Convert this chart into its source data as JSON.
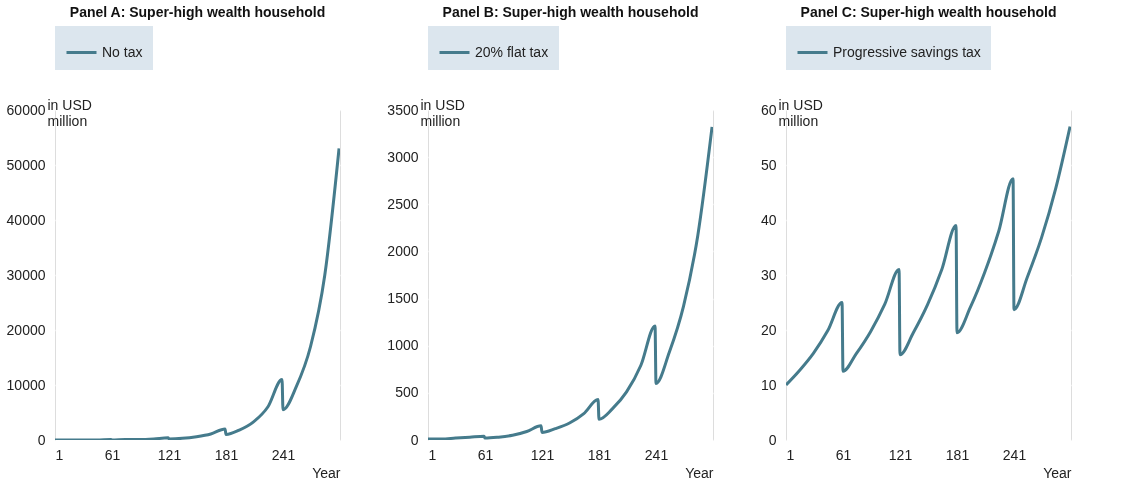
{
  "chart_data": [
    {
      "type": "line",
      "title": "Panel A: Super-high wealth household",
      "xlabel": "Year",
      "ylabel": "in USD million",
      "legend": "top",
      "grid": "y",
      "xlim": [
        1,
        301
      ],
      "xticks": [
        1,
        61,
        121,
        181,
        241
      ],
      "ylim": [
        0,
        60000
      ],
      "yticks": [
        0,
        10000,
        20000,
        30000,
        40000,
        50000,
        60000
      ],
      "series": [
        {
          "name": "No tax",
          "color": "#457b8c",
          "x": [
            1,
            15,
            30,
            45,
            60,
            61,
            75,
            90,
            105,
            120,
            121,
            135,
            150,
            165,
            180,
            181,
            195,
            210,
            225,
            240,
            241,
            255,
            270,
            285,
            300
          ],
          "values": [
            0,
            0,
            0,
            0,
            100,
            0,
            100,
            100,
            200,
            400,
            200,
            300,
            600,
            1100,
            2000,
            1000,
            1800,
            3300,
            6000,
            11000,
            5500,
            9700,
            17000,
            30000,
            53000
          ]
        }
      ]
    },
    {
      "type": "line",
      "title": "Panel B: Super-high wealth household",
      "xlabel": "Year",
      "ylabel": "in USD million",
      "legend": "top",
      "grid": "y",
      "xlim": [
        1,
        301
      ],
      "xticks": [
        1,
        61,
        121,
        181,
        241
      ],
      "ylim": [
        0,
        3500
      ],
      "yticks": [
        0,
        500,
        1000,
        1500,
        2000,
        2500,
        3000,
        3500
      ],
      "series": [
        {
          "name": "20% flat tax",
          "color": "#457b8c",
          "x": [
            1,
            15,
            30,
            45,
            60,
            61,
            75,
            90,
            105,
            120,
            121,
            135,
            150,
            165,
            180,
            181,
            195,
            210,
            225,
            240,
            241,
            255,
            270,
            285,
            300
          ],
          "values": [
            10,
            10,
            20,
            30,
            40,
            20,
            30,
            50,
            90,
            150,
            80,
            120,
            180,
            280,
            430,
            220,
            330,
            510,
            790,
            1210,
            600,
            930,
            1420,
            2170,
            3320
          ]
        }
      ]
    },
    {
      "type": "line",
      "title": "Panel C: Super-high wealth household",
      "xlabel": "Year",
      "ylabel": "in USD million",
      "legend": "top",
      "grid": "y",
      "xlim": [
        1,
        301
      ],
      "xticks": [
        1,
        61,
        121,
        181,
        241
      ],
      "ylim": [
        0,
        60
      ],
      "yticks": [
        0,
        10,
        20,
        30,
        40,
        50,
        60
      ],
      "series": [
        {
          "name": "Progressive savings tax",
          "color": "#457b8c",
          "x": [
            1,
            15,
            30,
            45,
            60,
            61,
            75,
            90,
            105,
            120,
            121,
            135,
            150,
            165,
            180,
            181,
            195,
            210,
            225,
            240,
            241,
            255,
            270,
            285,
            300
          ],
          "values": [
            10,
            12.6,
            15.8,
            19.9,
            25,
            12.5,
            15.7,
            19.7,
            24.7,
            31,
            15.5,
            19.5,
            24.6,
            31,
            39,
            19.5,
            24.1,
            30.4,
            38,
            47.5,
            23.7,
            29.6,
            36.8,
            45.8,
            57
          ]
        }
      ]
    }
  ]
}
